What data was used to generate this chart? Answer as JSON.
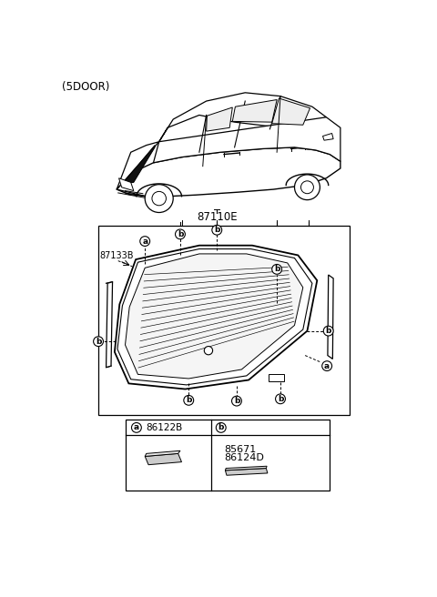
{
  "title": "(5DOOR)",
  "bg_color": "#ffffff",
  "part_number_main": "87110E",
  "part_number_strip": "87133B",
  "legend_a_code": "86122B",
  "legend_b_code1": "85671",
  "legend_b_code2": "86124D",
  "callout_a": "a",
  "callout_b": "b",
  "line_color": "#000000",
  "fill_light": "#f8f8f8",
  "fill_gray": "#cccccc"
}
